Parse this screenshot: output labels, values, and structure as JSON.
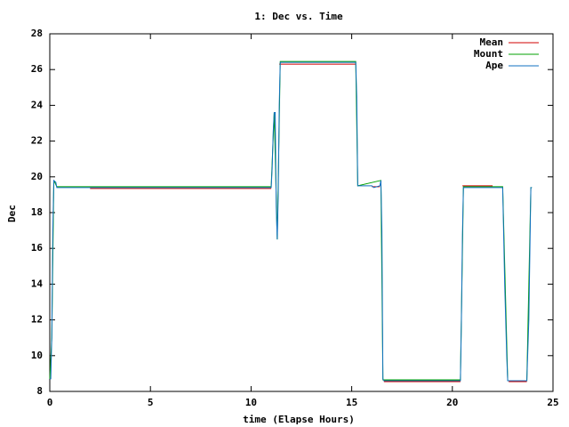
{
  "chart_data": {
    "type": "line",
    "title": "1: Dec vs. Time",
    "x_label": "time (Elapse Hours)",
    "y_label": "Dec",
    "xlim": [
      0,
      25
    ],
    "xticks": [
      0,
      5,
      10,
      15,
      20,
      25
    ],
    "ylim": [
      8,
      28
    ],
    "yticks": [
      8,
      10,
      12,
      14,
      16,
      18,
      20,
      22,
      24,
      26,
      28
    ],
    "legend": "top-right",
    "series": [
      {
        "name": "Mean",
        "color": "#d00000",
        "x": [
          2,
          11,
          null,
          11.4,
          15.2,
          null,
          16.0,
          16.4,
          null,
          16.6,
          20.4,
          null,
          20.5,
          22.0,
          null,
          22.8,
          23.7
        ],
        "values": [
          19.35,
          19.35,
          null,
          26.3,
          26.3,
          null,
          19.45,
          19.45,
          null,
          8.55,
          8.55,
          null,
          19.5,
          19.5,
          null,
          8.55,
          8.55
        ]
      },
      {
        "name": "Mount",
        "color": "#00a000",
        "x": [
          0.0,
          0.1,
          0.2,
          0.35,
          11.0,
          11.15,
          11.3,
          11.45,
          15.2,
          15.3,
          16.45,
          16.55,
          20.4,
          20.55,
          22.5,
          22.75,
          23.7,
          23.9,
          23.95
        ],
        "values": [
          8.7,
          11,
          19.8,
          19.45,
          19.45,
          23.6,
          16.5,
          26.45,
          26.45,
          19.5,
          19.8,
          8.65,
          8.65,
          19.45,
          19.45,
          8.6,
          8.6,
          19.4,
          19.4
        ]
      },
      {
        "name": "Ape",
        "color": "#1070c0",
        "x": [
          0.0,
          0.05,
          0.1,
          0.15,
          0.2,
          0.3,
          0.35,
          2,
          11,
          11.05,
          11.1,
          11.15,
          11.2,
          11.25,
          11.3,
          11.35,
          11.4,
          11.45,
          15.2,
          15.25,
          15.3,
          16.0,
          16.1,
          16.4,
          16.45,
          16.5,
          16.55,
          16.6,
          20.4,
          20.45,
          20.5,
          20.55,
          22.5,
          22.6,
          22.7,
          22.75,
          23.7,
          23.8,
          23.9,
          23.95
        ],
        "values": [
          8.7,
          8.7,
          11,
          17,
          19.8,
          19.7,
          19.4,
          19.4,
          19.4,
          20.5,
          22.5,
          23.6,
          23.6,
          18.3,
          16.5,
          19,
          24,
          26.4,
          26.4,
          24.5,
          19.5,
          19.5,
          19.4,
          19.5,
          19.8,
          17,
          8.7,
          8.6,
          8.6,
          12,
          16.7,
          19.4,
          19.4,
          14,
          10,
          8.6,
          8.6,
          12,
          19.4,
          19.4
        ]
      }
    ]
  }
}
